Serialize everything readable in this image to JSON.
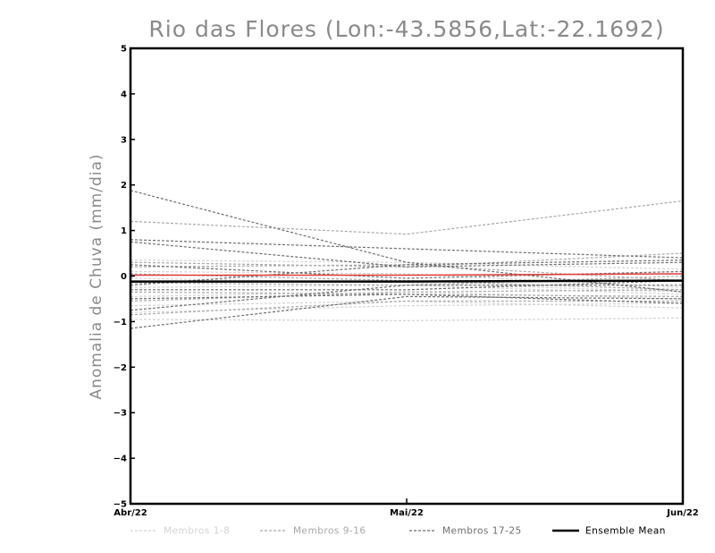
{
  "chart_data": {
    "type": "line",
    "title": "Rio das Flores (Lon:-43.5856,Lat:-22.1692)",
    "xlabel": "",
    "ylabel": "Anomalia de Chuva (mm/dia)",
    "categories": [
      "Abr/22",
      "Mai/22",
      "Jun/22"
    ],
    "ylim": [
      -5,
      5
    ],
    "yticks": [
      -5,
      -4,
      -3,
      -2,
      -1,
      0,
      1,
      2,
      3,
      4,
      5
    ],
    "grid": false,
    "legend_position": "bottom",
    "groups": [
      {
        "name": "Membros 1-8",
        "color": "#d3d3d3",
        "series": [
          [
            0.35,
            0.3,
            0.15
          ],
          [
            0.1,
            0.05,
            -0.25
          ],
          [
            -0.05,
            -0.15,
            -0.35
          ],
          [
            -0.25,
            -0.2,
            -0.4
          ],
          [
            -0.45,
            -0.35,
            -0.5
          ],
          [
            -0.65,
            -0.55,
            -0.7
          ],
          [
            -0.8,
            -0.65,
            -0.6
          ],
          [
            -0.95,
            -0.98,
            -0.92
          ]
        ]
      },
      {
        "name": "Membros 9-16",
        "color": "#a8a8a8",
        "series": [
          [
            1.2,
            0.92,
            1.65
          ],
          [
            0.3,
            0.2,
            0.5
          ],
          [
            0.2,
            0.25,
            -0.1
          ],
          [
            0.05,
            -0.1,
            -0.3
          ],
          [
            -0.15,
            -0.2,
            0.0
          ],
          [
            -0.35,
            -0.4,
            -0.45
          ],
          [
            -0.55,
            -0.35,
            -0.3
          ],
          [
            -0.85,
            -0.55,
            -0.55
          ]
        ]
      },
      {
        "name": "Membros 17-25",
        "color": "#6e6e6e",
        "series": [
          [
            1.88,
            0.3,
            -0.35
          ],
          [
            0.8,
            0.6,
            0.4
          ],
          [
            0.75,
            0.2,
            0.3
          ],
          [
            0.25,
            -0.05,
            0.1
          ],
          [
            -0.2,
            0.25,
            0.35
          ],
          [
            -0.3,
            -0.3,
            -0.1
          ],
          [
            -0.5,
            -0.4,
            -0.6
          ],
          [
            -0.75,
            -0.2,
            -0.2
          ],
          [
            -1.15,
            -0.45,
            -0.5
          ]
        ]
      }
    ],
    "highlight_series": {
      "name": "",
      "color": "#e23b3b",
      "values": [
        0.02,
        0.02,
        0.05
      ]
    },
    "ensemble_mean": {
      "name": "Ensemble Mean",
      "color": "#000000",
      "values": [
        -0.12,
        -0.12,
        -0.1
      ]
    }
  }
}
